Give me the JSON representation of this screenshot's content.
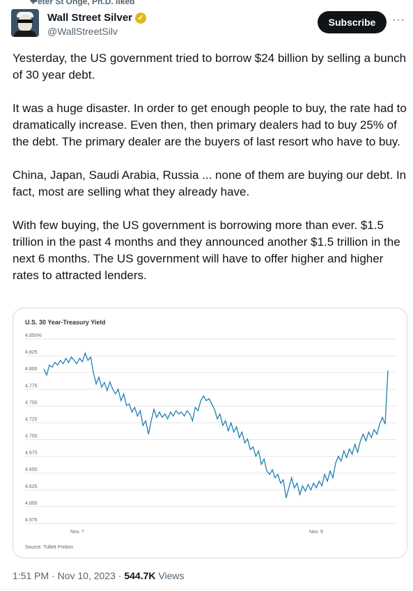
{
  "social_context": {
    "text": "Peter St Onge, Ph.D. liked"
  },
  "author": {
    "name": "Wall Street Silver",
    "handle": "@WallStreetSilv",
    "verified_icon": "verified-gold-badge-icon"
  },
  "actions": {
    "subscribe_label": "Subscribe",
    "more_label": "···"
  },
  "tweet": {
    "paragraphs": [
      "Yesterday, the US government tried to borrow $24 billion by selling a bunch of 30 year debt.",
      "It was a huge disaster. In order to get enough people to buy, the rate had to dramatically increase. Even then, then primary dealers had to buy 25% of the debt. The primary dealer are the buyers of last resort who have to buy.",
      "China, Japan, Saudi Arabia, Russia ... none of them are buying our debt. In fact, most are selling what they already have.",
      "With few buying, the US government is borrowing more than ever. $1.5 trillion in the past 4 months and they announced another $1.5 trillion in the next 6 months. The US government will have to offer higher and higher rates to attracted lenders."
    ]
  },
  "chart_data": {
    "type": "line",
    "title": "U.S. 30 Year-Treasury Yield",
    "source": "Source: Tullett Prebon",
    "y_ticks": [
      "4.850%",
      "4.825",
      "4.800",
      "4.775",
      "4.750",
      "4.725",
      "4.700",
      "4.675",
      "4.650",
      "4.625",
      "4.600",
      "4.575"
    ],
    "ylim": [
      4.575,
      4.85
    ],
    "x_ticks": [
      "Nov. 7",
      "Nov. 9"
    ],
    "line_color": "#1f7fb2",
    "series": [
      {
        "values": [
          4.802,
          4.793,
          4.808,
          4.805,
          4.812,
          4.808,
          4.815,
          4.81,
          4.818,
          4.812,
          4.82,
          4.815,
          4.81,
          4.818,
          4.813,
          4.826,
          4.815,
          4.82,
          4.797,
          4.78,
          4.79,
          4.775,
          4.782,
          4.77,
          4.783,
          4.772,
          4.765,
          4.772,
          4.755,
          4.765,
          4.748,
          4.75,
          4.738,
          4.745,
          4.732,
          4.74,
          4.718,
          4.725,
          4.705,
          4.725,
          4.742,
          4.73,
          4.738,
          4.73,
          4.735,
          4.728,
          4.738,
          4.732,
          4.74,
          4.735,
          4.738,
          4.732,
          4.74,
          4.735,
          4.725,
          4.745,
          4.74,
          4.755,
          4.762,
          4.755,
          4.758,
          4.75,
          4.742,
          4.728,
          4.735,
          4.718,
          4.725,
          4.71,
          4.722,
          4.708,
          4.716,
          4.7,
          4.708,
          4.692,
          4.698,
          4.682,
          4.686,
          4.672,
          4.68,
          4.66,
          4.668,
          4.65,
          4.645,
          4.652,
          4.64,
          4.645,
          4.632,
          4.637,
          4.61,
          4.625,
          4.64,
          4.625,
          4.632,
          4.615,
          4.628,
          4.62,
          4.63,
          4.622,
          4.632,
          4.625,
          4.635,
          4.628,
          4.645,
          4.635,
          4.65,
          4.64,
          4.662,
          4.672,
          4.665,
          4.68,
          4.67,
          4.683,
          4.675,
          4.69,
          4.678,
          4.695,
          4.705,
          4.695,
          4.708,
          4.7,
          4.712,
          4.705,
          4.72,
          4.73,
          4.72,
          4.8
        ]
      }
    ]
  },
  "meta": {
    "time": "1:51 PM",
    "separator1": " · ",
    "date": "Nov 10, 2023",
    "separator2": " · ",
    "views_count": "544.7K",
    "views_label": " Views"
  }
}
